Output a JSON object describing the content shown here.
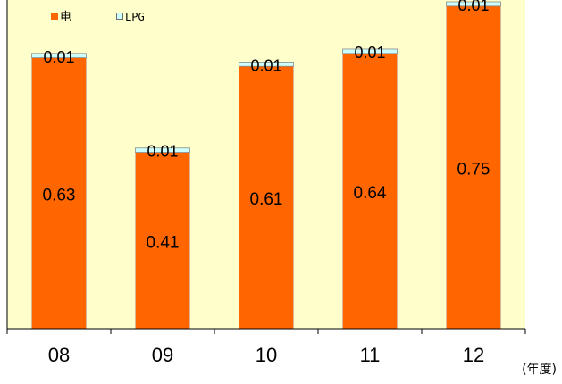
{
  "chart_data": {
    "type": "bar",
    "stacked": true,
    "categories": [
      "08",
      "09",
      "10",
      "11",
      "12"
    ],
    "series": [
      {
        "name": "电",
        "values": [
          0.63,
          0.41,
          0.61,
          0.64,
          0.75
        ],
        "labels": [
          "0.63",
          "0.41",
          "0.61",
          "0.64",
          "0.75"
        ],
        "color": "#ff6600"
      },
      {
        "name": "LPG",
        "values": [
          0.01,
          0.01,
          0.01,
          0.01,
          0.01
        ],
        "labels": [
          "0.01",
          "0.01",
          "0.01",
          "0.01",
          "0.01"
        ],
        "color": "#ccffff"
      }
    ],
    "xlabel": "(年度)",
    "ylim": [
      0,
      0.8
    ],
    "legend_position": "top-left",
    "plot_background": "#ffffcc",
    "grid": false
  }
}
